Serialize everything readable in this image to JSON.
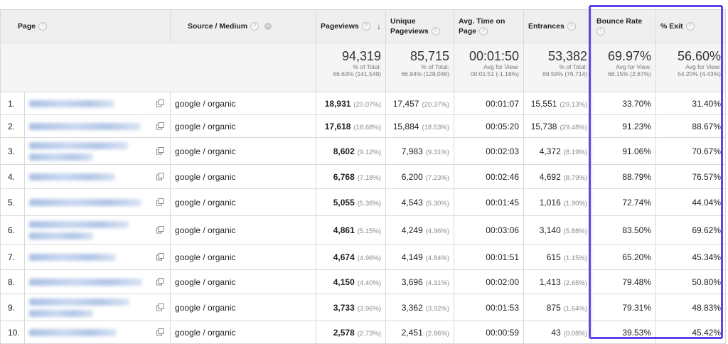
{
  "headers": {
    "page": "Page",
    "source_medium": "Source / Medium",
    "pageviews": "Pageviews",
    "unique_pageviews_1": "Unique",
    "unique_pageviews_2": "Pageviews",
    "avg_time_1": "Avg. Time on",
    "avg_time_2": "Page",
    "entrances": "Entrances",
    "bounce_rate": "Bounce Rate",
    "exit": "% Exit",
    "help_glyph": "?",
    "sort_glyph": "↓",
    "remove_glyph": "×"
  },
  "totals": {
    "pageviews": {
      "value": "94,319",
      "sub1": "% of Total:",
      "sub2": "66.63% (141,549)"
    },
    "unique_pageviews": {
      "value": "85,715",
      "sub1": "% of Total:",
      "sub2": "66.94% (128,046)"
    },
    "avg_time": {
      "value": "00:01:50",
      "sub1": "Avg for View:",
      "sub2": "00:01:51 (-1.18%)"
    },
    "entrances": {
      "value": "53,382",
      "sub1": "% of Total:",
      "sub2": "69.59% (76,714)"
    },
    "bounce_rate": {
      "value": "69.97%",
      "sub1": "Avg for View:",
      "sub2": "68.15% (2.67%)"
    },
    "exit": {
      "value": "56.60%",
      "sub1": "Avg for View:",
      "sub2": "54.20% (4.43%)"
    }
  },
  "rows": [
    {
      "idx": "1.",
      "source": "google / organic",
      "pv": "18,931",
      "pv_pct": "(20.07%)",
      "upv": "17,457",
      "upv_pct": "(20.37%)",
      "time": "00:01:07",
      "ent": "15,551",
      "ent_pct": "(29.13%)",
      "bounce": "33.70%",
      "exit": "31.40%"
    },
    {
      "idx": "2.",
      "source": "google / organic",
      "pv": "17,618",
      "pv_pct": "(18.68%)",
      "upv": "15,884",
      "upv_pct": "(18.53%)",
      "time": "00:05:20",
      "ent": "15,738",
      "ent_pct": "(29.48%)",
      "bounce": "91.23%",
      "exit": "88.67%"
    },
    {
      "idx": "3.",
      "source": "google / organic",
      "pv": "8,602",
      "pv_pct": "(9.12%)",
      "upv": "7,983",
      "upv_pct": "(9.31%)",
      "time": "00:02:03",
      "ent": "4,372",
      "ent_pct": "(8.19%)",
      "bounce": "91.06%",
      "exit": "70.67%"
    },
    {
      "idx": "4.",
      "source": "google / organic",
      "pv": "6,768",
      "pv_pct": "(7.18%)",
      "upv": "6,200",
      "upv_pct": "(7.23%)",
      "time": "00:02:46",
      "ent": "4,692",
      "ent_pct": "(8.79%)",
      "bounce": "88.79%",
      "exit": "76.57%"
    },
    {
      "idx": "5.",
      "source": "google / organic",
      "pv": "5,055",
      "pv_pct": "(5.36%)",
      "upv": "4,543",
      "upv_pct": "(5.30%)",
      "time": "00:01:45",
      "ent": "1,016",
      "ent_pct": "(1.90%)",
      "bounce": "72.74%",
      "exit": "44.04%"
    },
    {
      "idx": "6.",
      "source": "google / organic",
      "pv": "4,861",
      "pv_pct": "(5.15%)",
      "upv": "4,249",
      "upv_pct": "(4.96%)",
      "time": "00:03:06",
      "ent": "3,140",
      "ent_pct": "(5.88%)",
      "bounce": "83.50%",
      "exit": "69.62%"
    },
    {
      "idx": "7.",
      "source": "google / organic",
      "pv": "4,674",
      "pv_pct": "(4.96%)",
      "upv": "4,149",
      "upv_pct": "(4.84%)",
      "time": "00:01:51",
      "ent": "615",
      "ent_pct": "(1.15%)",
      "bounce": "65.20%",
      "exit": "45.34%"
    },
    {
      "idx": "8.",
      "source": "google / organic",
      "pv": "4,150",
      "pv_pct": "(4.40%)",
      "upv": "3,696",
      "upv_pct": "(4.31%)",
      "time": "00:02:00",
      "ent": "1,413",
      "ent_pct": "(2.65%)",
      "bounce": "79.48%",
      "exit": "50.80%"
    },
    {
      "idx": "9.",
      "source": "google / organic",
      "pv": "3,733",
      "pv_pct": "(3.96%)",
      "upv": "3,362",
      "upv_pct": "(3.92%)",
      "time": "00:01:53",
      "ent": "875",
      "ent_pct": "(1.64%)",
      "bounce": "79.31%",
      "exit": "48.83%"
    },
    {
      "idx": "10.",
      "source": "google / organic",
      "pv": "2,578",
      "pv_pct": "(2.73%)",
      "upv": "2,451",
      "upv_pct": "(2.86%)",
      "time": "00:00:59",
      "ent": "43",
      "ent_pct": "(0.08%)",
      "bounce": "39.53%",
      "exit": "45.42%"
    }
  ],
  "colors": {
    "highlight": "#5a45e8",
    "header_bg": "#efefef",
    "totals_bg": "#f5f5f5",
    "link_blur": "#9fb8df"
  },
  "icons": {
    "row_link": "open-in-new-window-icon",
    "help": "help-icon",
    "sort": "sort-desc-icon",
    "remove": "remove-dimension-icon"
  }
}
